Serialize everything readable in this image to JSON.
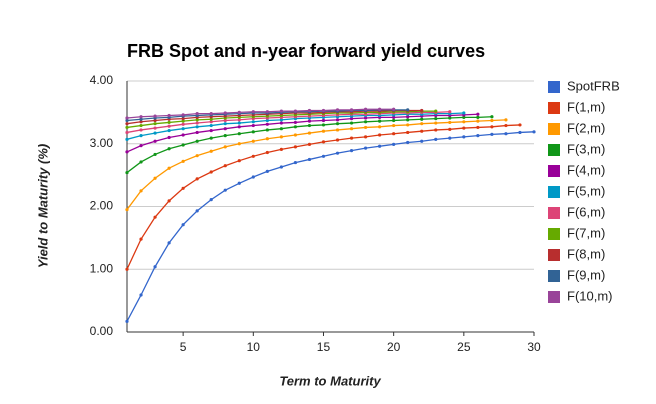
{
  "chart_data": {
    "type": "line",
    "title": "FRB Spot and n-year forward yield curves",
    "x_label": "Term to Maturity",
    "y_label": "Yield to Maturity (%)",
    "x": [
      1,
      2,
      3,
      4,
      5,
      6,
      7,
      8,
      9,
      10,
      11,
      12,
      13,
      14,
      15,
      16,
      17,
      18,
      19,
      20,
      21,
      22,
      23,
      24,
      25,
      26,
      27,
      28,
      29,
      30
    ],
    "xlim": [
      1,
      30
    ],
    "xticks": [
      5,
      10,
      15,
      20,
      25,
      30
    ],
    "ylim": [
      0,
      4
    ],
    "yticks": [
      {
        "value": 0,
        "label": "0.00"
      },
      {
        "value": 1,
        "label": "1.00"
      },
      {
        "value": 2,
        "label": "2.00"
      },
      {
        "value": 3,
        "label": "3.00"
      },
      {
        "value": 4,
        "label": "4.00"
      }
    ],
    "grid": true,
    "legend": "right",
    "series": [
      {
        "name": "SpotFRB",
        "color": "#3366cc",
        "values": [
          0.17,
          0.59,
          1.04,
          1.42,
          1.71,
          1.93,
          2.11,
          2.26,
          2.37,
          2.47,
          2.56,
          2.63,
          2.7,
          2.75,
          2.8,
          2.85,
          2.89,
          2.93,
          2.96,
          2.99,
          3.02,
          3.04,
          3.07,
          3.09,
          3.11,
          3.13,
          3.15,
          3.16,
          3.18,
          3.19
        ]
      },
      {
        "name": "F(1,m)",
        "color": "#dc3912",
        "values": [
          1.0,
          1.48,
          1.83,
          2.09,
          2.29,
          2.44,
          2.55,
          2.65,
          2.73,
          2.8,
          2.86,
          2.91,
          2.95,
          2.99,
          3.03,
          3.06,
          3.09,
          3.11,
          3.14,
          3.16,
          3.18,
          3.2,
          3.22,
          3.23,
          3.25,
          3.26,
          3.27,
          3.29,
          3.3,
          null
        ]
      },
      {
        "name": "F(2,m)",
        "color": "#ff9900",
        "values": [
          1.95,
          2.25,
          2.45,
          2.61,
          2.72,
          2.81,
          2.88,
          2.95,
          3.0,
          3.04,
          3.08,
          3.11,
          3.14,
          3.17,
          3.2,
          3.22,
          3.24,
          3.26,
          3.27,
          3.29,
          3.3,
          3.32,
          3.33,
          3.34,
          3.35,
          3.36,
          3.37,
          3.38,
          null,
          null
        ]
      },
      {
        "name": "F(3,m)",
        "color": "#109618",
        "values": [
          2.54,
          2.71,
          2.83,
          2.92,
          2.98,
          3.04,
          3.09,
          3.13,
          3.16,
          3.19,
          3.22,
          3.24,
          3.27,
          3.29,
          3.3,
          3.32,
          3.33,
          3.35,
          3.36,
          3.37,
          3.38,
          3.39,
          3.4,
          3.41,
          3.42,
          3.42,
          3.43,
          null,
          null,
          null
        ]
      },
      {
        "name": "F(4,m)",
        "color": "#990099",
        "values": [
          2.87,
          2.97,
          3.04,
          3.1,
          3.14,
          3.18,
          3.21,
          3.24,
          3.27,
          3.29,
          3.31,
          3.33,
          3.34,
          3.36,
          3.37,
          3.38,
          3.4,
          3.41,
          3.42,
          3.42,
          3.43,
          3.44,
          3.45,
          3.45,
          3.46,
          3.47,
          null,
          null,
          null,
          null
        ]
      },
      {
        "name": "F(5,m)",
        "color": "#0099c6",
        "values": [
          3.07,
          3.13,
          3.17,
          3.21,
          3.24,
          3.27,
          3.29,
          3.32,
          3.33,
          3.35,
          3.37,
          3.38,
          3.4,
          3.41,
          3.42,
          3.43,
          3.44,
          3.45,
          3.45,
          3.46,
          3.47,
          3.47,
          3.48,
          3.48,
          3.49,
          null,
          null,
          null,
          null,
          null
        ]
      },
      {
        "name": "F(6,m)",
        "color": "#dd4477",
        "values": [
          3.18,
          3.22,
          3.25,
          3.28,
          3.31,
          3.33,
          3.35,
          3.37,
          3.38,
          3.4,
          3.41,
          3.42,
          3.43,
          3.44,
          3.45,
          3.46,
          3.47,
          3.47,
          3.48,
          3.49,
          3.49,
          3.5,
          3.5,
          3.51,
          null,
          null,
          null,
          null,
          null,
          null
        ]
      },
      {
        "name": "F(7,m)",
        "color": "#66aa00",
        "values": [
          3.26,
          3.29,
          3.32,
          3.34,
          3.36,
          3.38,
          3.39,
          3.41,
          3.42,
          3.43,
          3.44,
          3.45,
          3.46,
          3.47,
          3.48,
          3.49,
          3.49,
          3.5,
          3.5,
          3.51,
          3.51,
          3.52,
          3.52,
          null,
          null,
          null,
          null,
          null,
          null,
          null
        ]
      },
      {
        "name": "F(8,m)",
        "color": "#b82e2e",
        "values": [
          3.32,
          3.35,
          3.37,
          3.39,
          3.4,
          3.42,
          3.43,
          3.44,
          3.45,
          3.46,
          3.47,
          3.48,
          3.49,
          3.49,
          3.5,
          3.51,
          3.51,
          3.52,
          3.52,
          3.53,
          3.53,
          3.53,
          null,
          null,
          null,
          null,
          null,
          null,
          null,
          null
        ]
      },
      {
        "name": "F(9,m)",
        "color": "#316395",
        "values": [
          3.37,
          3.39,
          3.41,
          3.42,
          3.44,
          3.45,
          3.46,
          3.47,
          3.48,
          3.49,
          3.49,
          3.5,
          3.51,
          3.51,
          3.52,
          3.52,
          3.53,
          3.53,
          3.54,
          3.54,
          3.54,
          null,
          null,
          null,
          null,
          null,
          null,
          null,
          null,
          null
        ]
      },
      {
        "name": "F(10,m)",
        "color": "#994499",
        "values": [
          3.41,
          3.43,
          3.44,
          3.45,
          3.46,
          3.48,
          3.48,
          3.49,
          3.5,
          3.51,
          3.51,
          3.52,
          3.52,
          3.53,
          3.53,
          3.54,
          3.54,
          3.55,
          3.55,
          3.55,
          null,
          null,
          null,
          null,
          null,
          null,
          null,
          null,
          null,
          null
        ]
      }
    ]
  }
}
